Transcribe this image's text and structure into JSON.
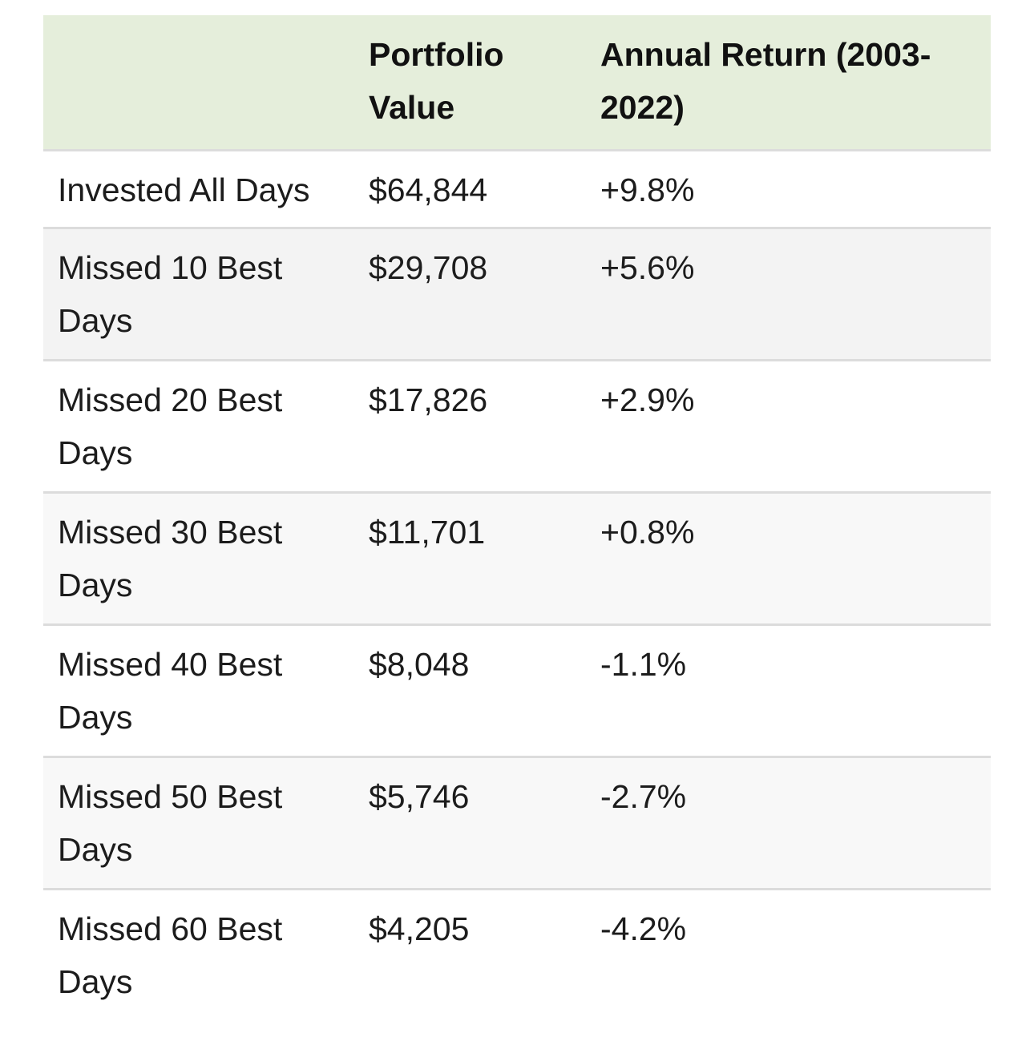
{
  "header": {
    "col1": "",
    "col2": "Portfolio Value",
    "col3": "Annual Return (2003-2022)"
  },
  "rows": [
    {
      "label": "Invested All Days",
      "value": "$64,844",
      "return": "+9.8%"
    },
    {
      "label": "Missed 10 Best Days",
      "value": "$29,708",
      "return": "+5.6%"
    },
    {
      "label": "Missed 20 Best Days",
      "value": "$17,826",
      "return": "+2.9%"
    },
    {
      "label": "Missed 30 Best Days",
      "value": "$11,701",
      "return": "+0.8%"
    },
    {
      "label": "Missed 40 Best Days",
      "value": "$8,048",
      "return": "-1.1%"
    },
    {
      "label": "Missed 50 Best Days",
      "value": "$5,746",
      "return": "-2.7%"
    },
    {
      "label": "Missed 60 Best Days",
      "value": "$4,205",
      "return": "-4.2%"
    }
  ],
  "colors": {
    "header_background": "#e5eedb",
    "row_alt_background": "#f3f3f3",
    "border": "#dcdcdc"
  }
}
